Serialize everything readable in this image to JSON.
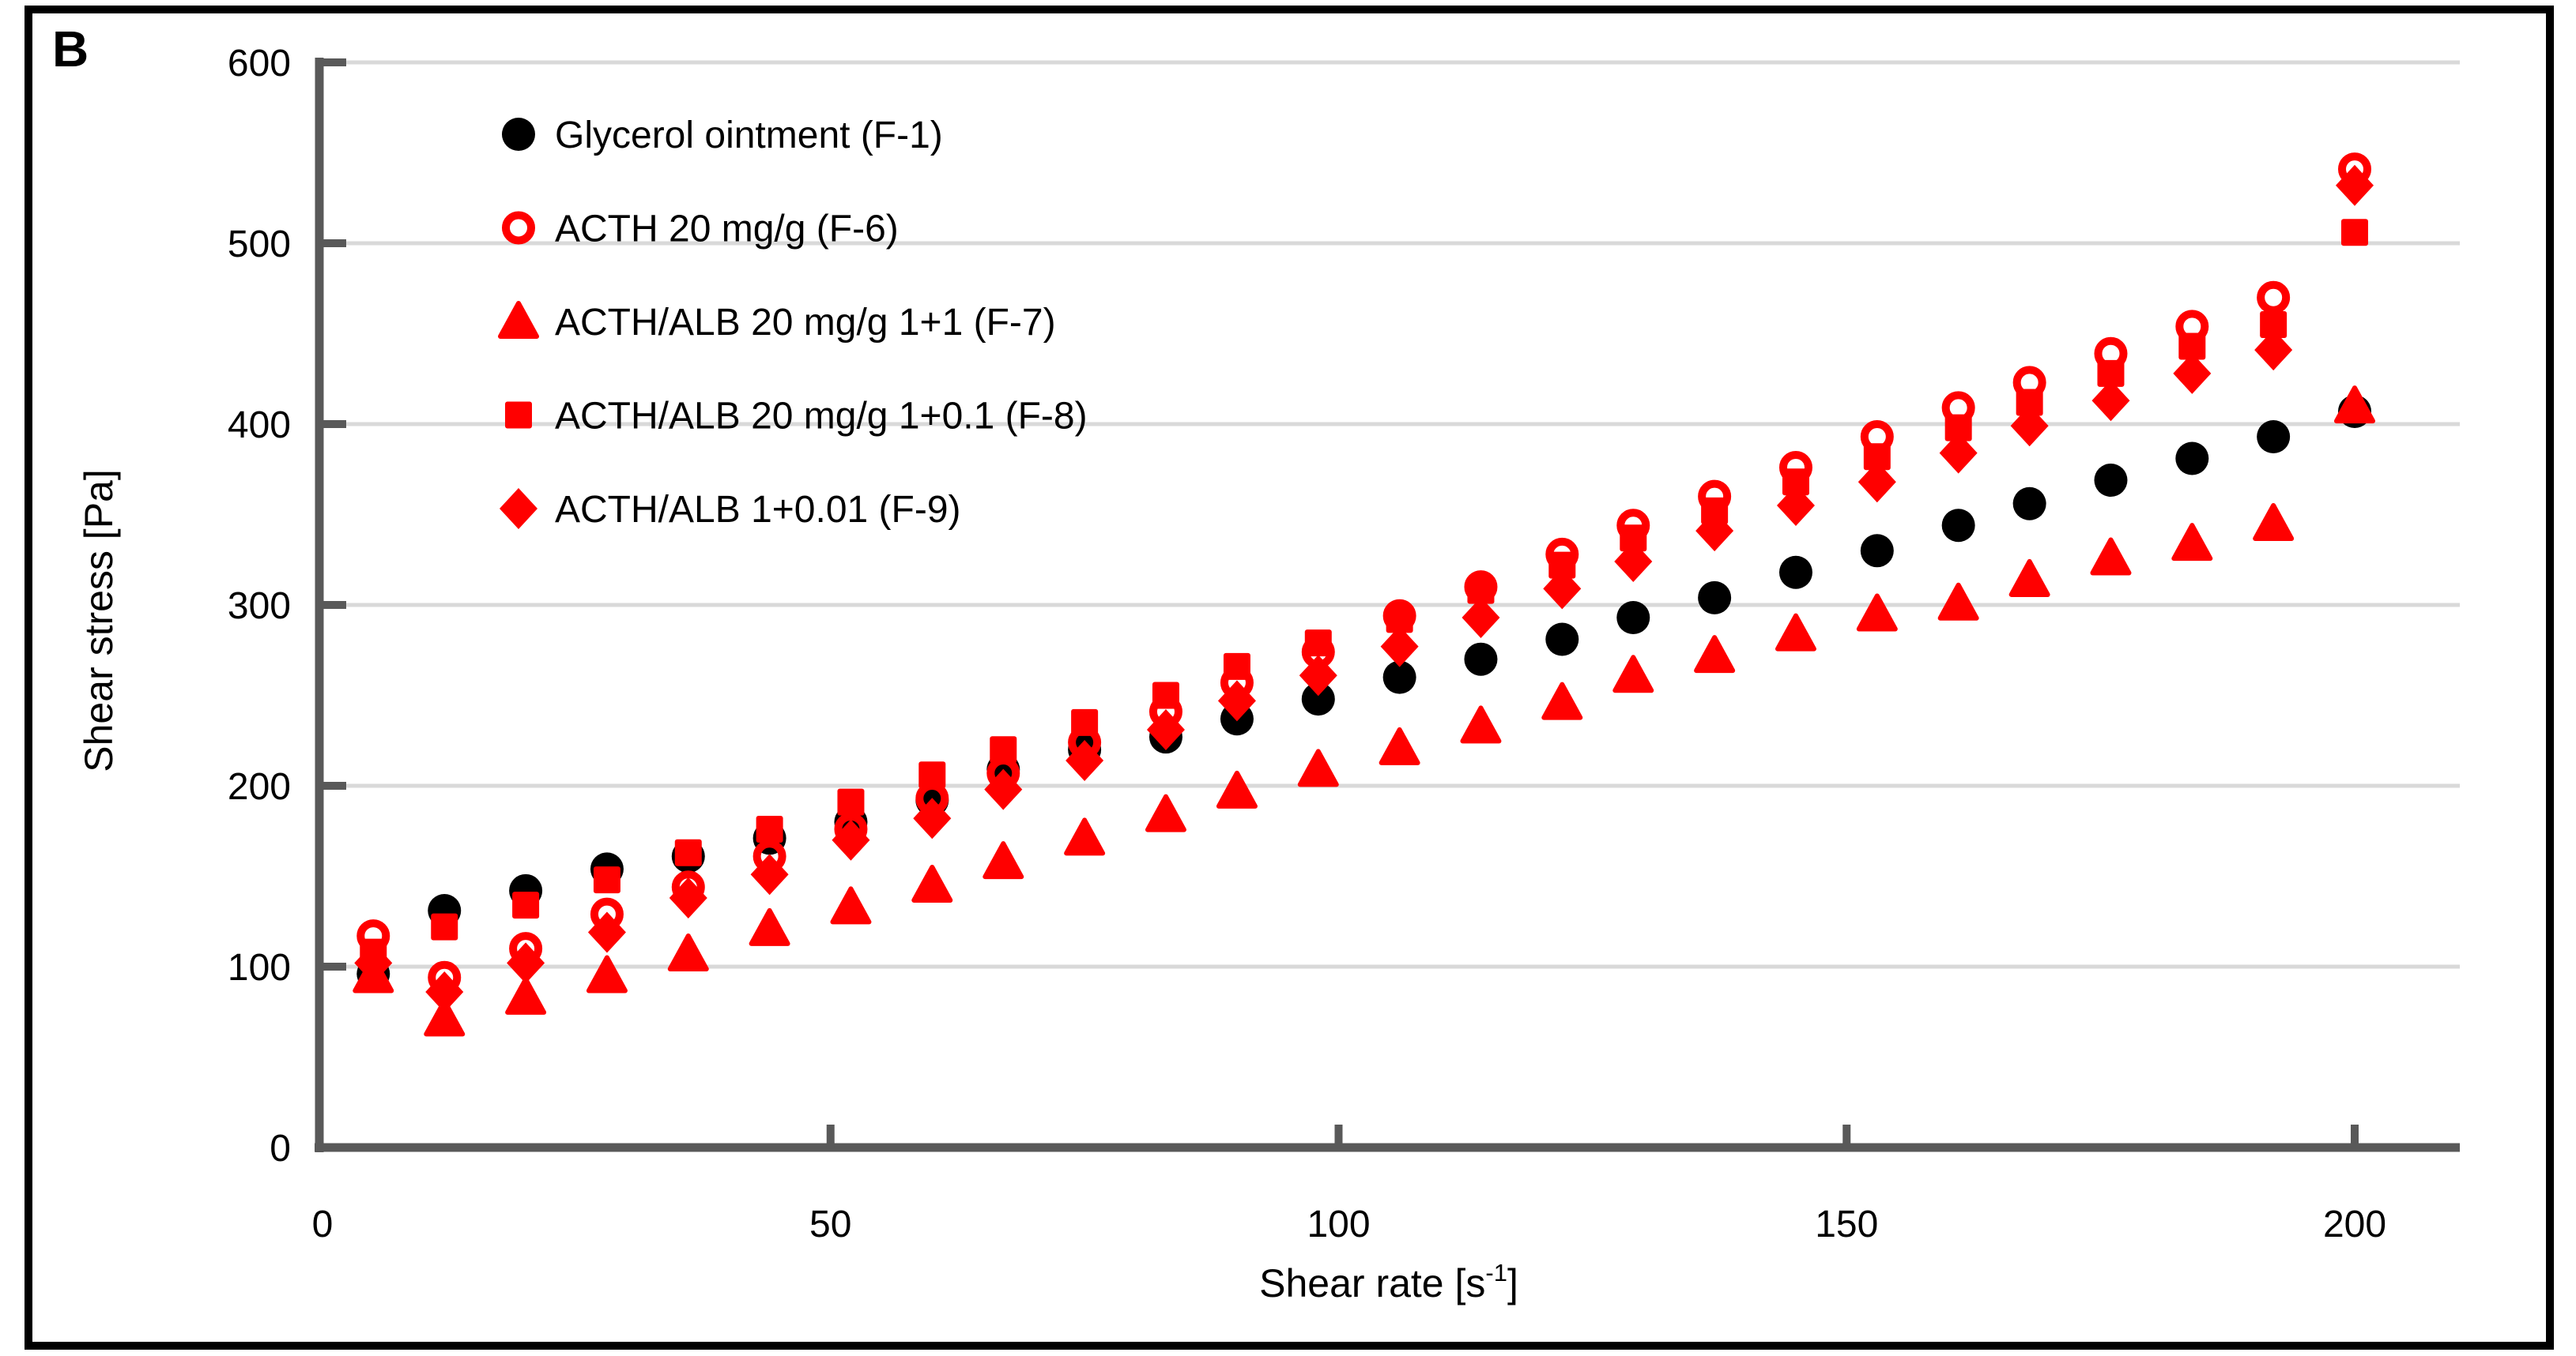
{
  "figure": {
    "panel_label": "B",
    "background_color": "#FFFFFF",
    "border_color": "#000000"
  },
  "chart_data": {
    "type": "scatter",
    "title": "",
    "xlabel": {
      "prefix": "Shear rate [s",
      "superscript": "-1",
      "suffix": "]"
    },
    "ylabel": "Shear stress [Pa]",
    "xlim": [
      0,
      200
    ],
    "ylim": [
      0,
      600
    ],
    "x_ticks": [
      0,
      50,
      100,
      150,
      200
    ],
    "y_ticks": [
      0,
      100,
      200,
      300,
      400,
      500,
      600
    ],
    "grid": true,
    "gridline_color": "#D9D9D9",
    "axis_color": "#595959",
    "legend_position": "top-left-inside",
    "x": [
      5,
      12,
      20,
      28,
      36,
      44,
      52,
      60,
      67,
      75,
      83,
      90,
      98,
      106,
      114,
      122,
      129,
      137,
      145,
      153,
      161,
      168,
      176,
      184,
      192,
      200
    ],
    "series": [
      {
        "name": "Glycerol ointment (F-1)",
        "marker": "filled-circle",
        "color": "#000000",
        "values": [
          96,
          131,
          142,
          154,
          161,
          171,
          180,
          192,
          209,
          220,
          227,
          237,
          248,
          260,
          270,
          281,
          293,
          304,
          318,
          330,
          344,
          356,
          369,
          381,
          393,
          407
        ]
      },
      {
        "name": "ACTH 20 mg/g (F-6)",
        "marker": "open-circle",
        "color": "#FF0000",
        "values": [
          117,
          94,
          110,
          129,
          144,
          161,
          176,
          193,
          207,
          224,
          241,
          257,
          274,
          294,
          310,
          328,
          344,
          360,
          376,
          393,
          409,
          423,
          439,
          454,
          470,
          541
        ]
      },
      {
        "name": "ACTH/ALB 20 mg/g 1+1 (F-7)",
        "marker": "filled-triangle",
        "color": "#FF0000",
        "values": [
          95,
          71,
          83,
          95,
          107,
          121,
          133,
          145,
          158,
          171,
          184,
          197,
          209,
          221,
          233,
          246,
          261,
          272,
          284,
          295,
          301,
          314,
          326,
          334,
          345,
          410
        ]
      },
      {
        "name": "ACTH/ALB 20 mg/g 1+0.1 (F-8)",
        "marker": "filled-square",
        "color": "#FF0000",
        "values": [
          108,
          122,
          134,
          148,
          163,
          176,
          191,
          206,
          220,
          235,
          250,
          266,
          279,
          292,
          308,
          322,
          337,
          352,
          368,
          382,
          398,
          412,
          428,
          443,
          455,
          506
        ]
      },
      {
        "name": "ACTH/ALB 1+0.01 (F-9)",
        "marker": "filled-diamond",
        "color": "#FF0000",
        "values": [
          102,
          86,
          102,
          119,
          138,
          151,
          170,
          182,
          198,
          214,
          231,
          247,
          261,
          277,
          293,
          309,
          324,
          341,
          355,
          368,
          384,
          399,
          413,
          428,
          441,
          532
        ]
      }
    ]
  }
}
